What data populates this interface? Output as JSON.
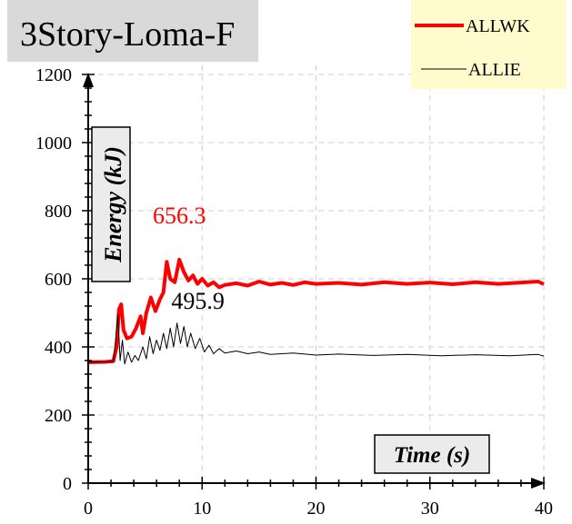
{
  "chart_data": {
    "type": "line",
    "title": "3Story-Loma-F",
    "xlabel": "Time (s)",
    "ylabel": "Energy (kJ)",
    "xlim": [
      0,
      40
    ],
    "ylim": [
      0,
      1200
    ],
    "x_ticks": [
      "0",
      "10",
      "20",
      "30",
      "40"
    ],
    "y_ticks": [
      "0",
      "200",
      "400",
      "600",
      "800",
      "1000",
      "1200"
    ],
    "grid": true,
    "legend_position": "top-right",
    "series": [
      {
        "name": "ALLWK",
        "color": "#ff0000",
        "points": [
          [
            0,
            355
          ],
          [
            1.5,
            356
          ],
          [
            2.2,
            358
          ],
          [
            2.5,
            400
          ],
          [
            2.7,
            510
          ],
          [
            2.9,
            525
          ],
          [
            3.1,
            450
          ],
          [
            3.4,
            425
          ],
          [
            3.8,
            430
          ],
          [
            4.2,
            455
          ],
          [
            4.6,
            490
          ],
          [
            4.8,
            440
          ],
          [
            5.1,
            500
          ],
          [
            5.5,
            545
          ],
          [
            5.9,
            505
          ],
          [
            6.3,
            540
          ],
          [
            6.6,
            560
          ],
          [
            6.9,
            650
          ],
          [
            7.2,
            600
          ],
          [
            7.6,
            590
          ],
          [
            8.0,
            656.3
          ],
          [
            8.4,
            620
          ],
          [
            8.8,
            595
          ],
          [
            9.2,
            610
          ],
          [
            9.6,
            585
          ],
          [
            10.0,
            600
          ],
          [
            10.5,
            580
          ],
          [
            11,
            590
          ],
          [
            11.5,
            575
          ],
          [
            12,
            582
          ],
          [
            13,
            587
          ],
          [
            14,
            580
          ],
          [
            15,
            592
          ],
          [
            16,
            583
          ],
          [
            17,
            588
          ],
          [
            18,
            582
          ],
          [
            19,
            590
          ],
          [
            20,
            585
          ],
          [
            22,
            588
          ],
          [
            24,
            583
          ],
          [
            26,
            590
          ],
          [
            28,
            585
          ],
          [
            30,
            589
          ],
          [
            32,
            584
          ],
          [
            34,
            590
          ],
          [
            36,
            585
          ],
          [
            38,
            589
          ],
          [
            39.5,
            592
          ],
          [
            40,
            584
          ]
        ]
      },
      {
        "name": "ALLIE",
        "color": "#000000",
        "points": [
          [
            0,
            355
          ],
          [
            1.5,
            356
          ],
          [
            2.2,
            358
          ],
          [
            2.4,
            420
          ],
          [
            2.6,
            495.9
          ],
          [
            2.8,
            360
          ],
          [
            3.0,
            420
          ],
          [
            3.2,
            350
          ],
          [
            3.5,
            385
          ],
          [
            3.8,
            355
          ],
          [
            4.1,
            375
          ],
          [
            4.4,
            360
          ],
          [
            4.8,
            400
          ],
          [
            5.1,
            365
          ],
          [
            5.4,
            430
          ],
          [
            5.7,
            380
          ],
          [
            6.0,
            420
          ],
          [
            6.3,
            390
          ],
          [
            6.6,
            440
          ],
          [
            6.9,
            395
          ],
          [
            7.2,
            455
          ],
          [
            7.5,
            400
          ],
          [
            7.8,
            470
          ],
          [
            8.1,
            410
          ],
          [
            8.4,
            460
          ],
          [
            8.7,
            400
          ],
          [
            9.0,
            440
          ],
          [
            9.4,
            395
          ],
          [
            9.8,
            425
          ],
          [
            10.2,
            385
          ],
          [
            10.6,
            405
          ],
          [
            11,
            380
          ],
          [
            11.5,
            395
          ],
          [
            12,
            382
          ],
          [
            13,
            388
          ],
          [
            14,
            380
          ],
          [
            15,
            385
          ],
          [
            16,
            378
          ],
          [
            18,
            382
          ],
          [
            20,
            376
          ],
          [
            22,
            379
          ],
          [
            25,
            375
          ],
          [
            28,
            378
          ],
          [
            31,
            374
          ],
          [
            34,
            377
          ],
          [
            37,
            374
          ],
          [
            39.5,
            378
          ],
          [
            40,
            373
          ]
        ]
      }
    ],
    "annotations": [
      {
        "text": "656.3",
        "x": 8.0,
        "y": 656.3,
        "color": "#ff0000"
      },
      {
        "text": "495.9",
        "x": 2.6,
        "y": 495.9,
        "color": "#000000"
      }
    ]
  }
}
